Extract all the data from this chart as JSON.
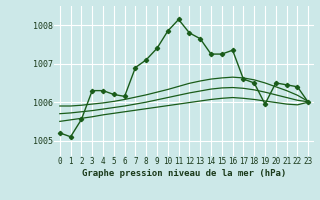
{
  "title": "Graphe pression niveau de la mer (hPa)",
  "bg_color": "#cce8e8",
  "grid_color": "#ffffff",
  "line_color": "#1a5c1a",
  "x_ticks": [
    0,
    1,
    2,
    3,
    4,
    5,
    6,
    7,
    8,
    9,
    10,
    11,
    12,
    13,
    14,
    15,
    16,
    17,
    18,
    19,
    20,
    21,
    22,
    23
  ],
  "ylim": [
    1004.6,
    1008.5
  ],
  "yticks": [
    1005,
    1006,
    1007,
    1008
  ],
  "main_series": [
    1005.2,
    1005.1,
    1005.55,
    1006.3,
    1006.3,
    1006.2,
    1006.15,
    1006.9,
    1007.1,
    1007.4,
    1007.85,
    1008.15,
    1007.8,
    1007.65,
    1007.25,
    1007.25,
    1007.35,
    1006.6,
    1006.5,
    1005.95,
    1006.5,
    1006.45,
    1006.4,
    1006.0
  ],
  "smooth_top": [
    1005.9,
    1005.9,
    1005.92,
    1005.95,
    1005.98,
    1006.02,
    1006.07,
    1006.13,
    1006.19,
    1006.26,
    1006.33,
    1006.41,
    1006.49,
    1006.55,
    1006.6,
    1006.63,
    1006.65,
    1006.63,
    1006.58,
    1006.5,
    1006.4,
    1006.3,
    1006.18,
    1006.02
  ],
  "smooth_mid": [
    1005.7,
    1005.72,
    1005.75,
    1005.78,
    1005.82,
    1005.86,
    1005.9,
    1005.95,
    1006.0,
    1006.06,
    1006.12,
    1006.18,
    1006.24,
    1006.29,
    1006.34,
    1006.37,
    1006.38,
    1006.36,
    1006.32,
    1006.26,
    1006.19,
    1006.12,
    1006.05,
    1006.01
  ],
  "smooth_bot": [
    1005.5,
    1005.54,
    1005.58,
    1005.62,
    1005.67,
    1005.71,
    1005.75,
    1005.79,
    1005.83,
    1005.87,
    1005.91,
    1005.95,
    1005.99,
    1006.03,
    1006.07,
    1006.1,
    1006.12,
    1006.1,
    1006.07,
    1006.03,
    1005.99,
    1005.95,
    1005.93,
    1006.0
  ],
  "tick_fontsize": 6,
  "label_fontsize": 6.5,
  "title_fontsize": 6.5
}
